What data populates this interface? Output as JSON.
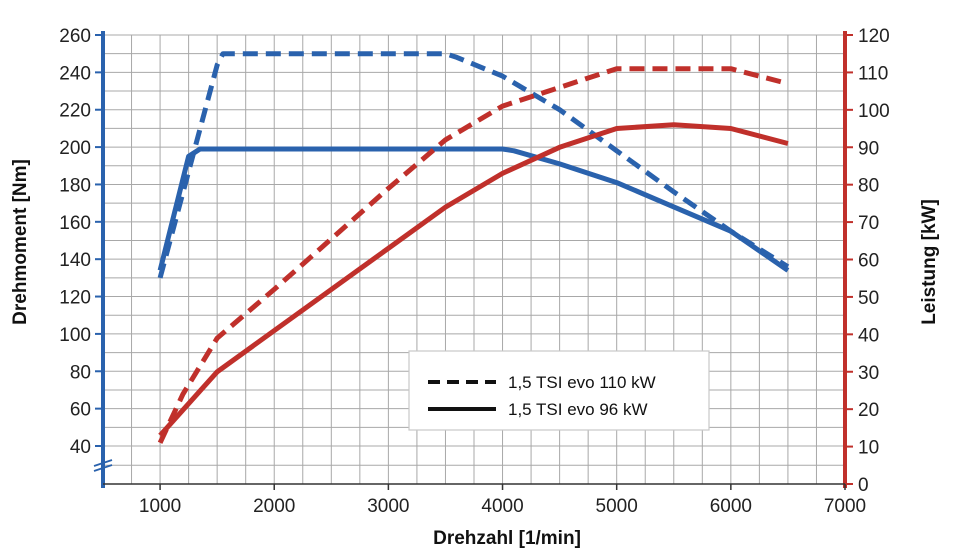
{
  "chart_data": {
    "type": "line",
    "title": "",
    "xlabel": "Drehzahl [1/min]",
    "ylabel": "Drehmoment [Nm]",
    "y2label": "Leistung [kW]",
    "xlim": [
      500,
      7000
    ],
    "ylim": [
      20,
      260
    ],
    "y2lim": [
      0,
      120
    ],
    "x_ticks": [
      1000,
      2000,
      3000,
      4000,
      5000,
      6000,
      7000
    ],
    "y_ticks": [
      40,
      60,
      80,
      100,
      120,
      140,
      160,
      180,
      200,
      220,
      240,
      260
    ],
    "y2_ticks": [
      0,
      10,
      20,
      30,
      40,
      50,
      60,
      70,
      80,
      90,
      100,
      110,
      120
    ],
    "grid": true,
    "legend_position": "lower-center",
    "legend": [
      {
        "label": "1,5 TSI evo 110 kW",
        "style": "dashed"
      },
      {
        "label": "1,5 TSI evo 96 kW",
        "style": "solid"
      }
    ],
    "colors": {
      "torque": "#2a62ad",
      "power": "#c0302b",
      "grid": "#a8a8a8"
    },
    "series": [
      {
        "quantity": "torque",
        "axis": "left",
        "style": "dashed",
        "x": [
          1000,
          1500,
          1550,
          3500,
          3600,
          4000,
          4500,
          5000,
          5500,
          6000,
          6500
        ],
        "y": [
          130,
          244,
          250,
          250,
          248,
          238,
          220,
          198,
          176,
          155,
          136
        ]
      },
      {
        "quantity": "torque",
        "axis": "left",
        "style": "solid",
        "x": [
          1000,
          1250,
          1350,
          4000,
          4100,
          4500,
          5000,
          5500,
          6000,
          6500
        ],
        "y": [
          134,
          195,
          199,
          199,
          198,
          191,
          181,
          168,
          155,
          134
        ]
      },
      {
        "quantity": "power",
        "axis": "right",
        "style": "dashed",
        "x": [
          1000,
          1200,
          1500,
          2000,
          3000,
          3500,
          4000,
          4500,
          5000,
          5500,
          6000,
          6500
        ],
        "y": [
          11,
          24,
          39,
          52,
          79,
          92,
          101,
          106,
          111,
          111,
          111,
          107
        ]
      },
      {
        "quantity": "power",
        "axis": "right",
        "style": "solid",
        "x": [
          1000,
          1500,
          2000,
          3000,
          3500,
          4000,
          4500,
          5000,
          5500,
          6000,
          6500
        ],
        "y": [
          13,
          30,
          41,
          63,
          74,
          83,
          90,
          95,
          96,
          95,
          91
        ]
      }
    ]
  }
}
